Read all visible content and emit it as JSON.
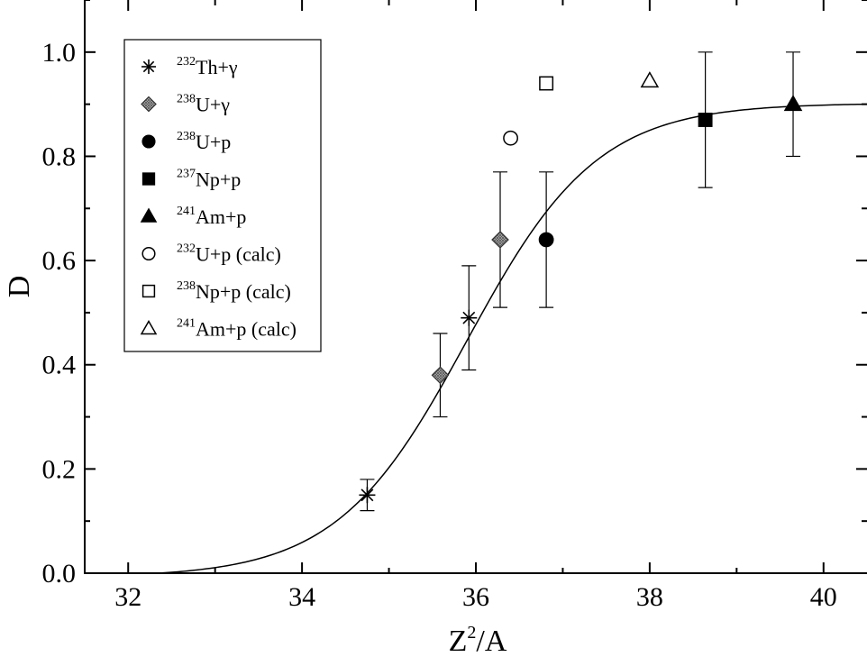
{
  "chart_data": {
    "type": "scatter",
    "title": "",
    "xlabel": "Z²/A",
    "xlabel_base": "Z",
    "xlabel_sup": "2",
    "xlabel_rest": "/A",
    "ylabel": "D",
    "xlim": [
      31.5,
      40.5
    ],
    "ylim": [
      0.0,
      1.1
    ],
    "x_ticks": [
      32,
      34,
      36,
      38,
      40
    ],
    "x_tick_labels": [
      "32",
      "34",
      "36",
      "38",
      "40"
    ],
    "y_ticks": [
      0.0,
      0.2,
      0.4,
      0.6,
      0.8,
      1.0
    ],
    "y_tick_labels": [
      "0.0",
      "0.2",
      "0.4",
      "0.6",
      "0.8",
      "1.0"
    ],
    "grid": false,
    "legend_position": "top-left",
    "series": [
      {
        "sup": "232",
        "name": "Th+γ",
        "marker": "star",
        "points": [
          {
            "x": 34.75,
            "y": 0.15,
            "err_low": 0.12,
            "err_high": 0.18
          },
          {
            "x": 35.92,
            "y": 0.49,
            "err_low": 0.39,
            "err_high": 0.59
          }
        ]
      },
      {
        "sup": "238",
        "name": "U+γ",
        "marker": "hatched-diamond",
        "points": [
          {
            "x": 35.59,
            "y": 0.38,
            "err_low": 0.3,
            "err_high": 0.46
          },
          {
            "x": 36.28,
            "y": 0.64,
            "err_low": 0.51,
            "err_high": 0.77
          }
        ]
      },
      {
        "sup": "238",
        "name": "U+p",
        "marker": "filled-circle",
        "points": [
          {
            "x": 36.81,
            "y": 0.64,
            "err_low": 0.51,
            "err_high": 0.77
          }
        ]
      },
      {
        "sup": "237",
        "name": "Np+p",
        "marker": "filled-square",
        "points": [
          {
            "x": 38.64,
            "y": 0.87,
            "err_low": 0.74,
            "err_high": 1.0
          }
        ]
      },
      {
        "sup": "241",
        "name": "Am+p",
        "marker": "filled-triangle",
        "points": [
          {
            "x": 39.65,
            "y": 0.9,
            "err_low": 0.8,
            "err_high": 1.0
          }
        ]
      },
      {
        "sup": "232",
        "name": "U+p (calc)",
        "marker": "open-circle",
        "points": [
          {
            "x": 36.4,
            "y": 0.835
          }
        ]
      },
      {
        "sup": "238",
        "name": "Np+p (calc)",
        "marker": "open-square",
        "points": [
          {
            "x": 36.81,
            "y": 0.94
          }
        ]
      },
      {
        "sup": "241",
        "name": "Am+p (calc)",
        "marker": "open-triangle",
        "points": [
          {
            "x": 38.0,
            "y": 0.945
          }
        ]
      }
    ],
    "fit_curve": {
      "type": "sigmoid",
      "amplitude": 0.91,
      "x0": 35.9,
      "width": 0.75,
      "x_start": 32.35,
      "x_end": 40.5
    }
  }
}
